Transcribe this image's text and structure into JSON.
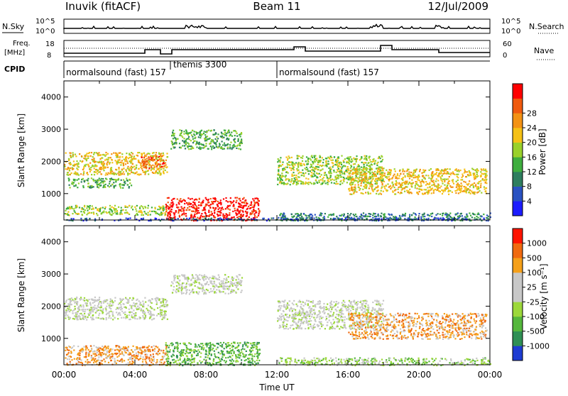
{
  "header": {
    "site": "Inuvik (fitACF)",
    "beam": "Beam 11",
    "date": "12/Jul/2009"
  },
  "panels": {
    "nsky": {
      "label": "N.Sky",
      "right_label": "N.Search",
      "left_ticks": [
        "10^5",
        "10^0"
      ],
      "right_ticks": [
        "10^5",
        "10^0"
      ]
    },
    "freq": {
      "label_line1": "Freq.",
      "label_line2": "[MHz]",
      "right_label": "Nave",
      "left_ticks": [
        "18",
        "8"
      ],
      "right_ticks": [
        "60",
        "0"
      ]
    },
    "cpid": {
      "label": "CPID",
      "segments": [
        {
          "text": "normalsound (fast) 157",
          "start_hour": 0
        },
        {
          "text": "themis 3300",
          "start_hour": 6
        },
        {
          "text": "normalsound (fast) 157",
          "start_hour": 12
        }
      ]
    }
  },
  "chart_data": [
    {
      "type": "heatmap",
      "title": "Power",
      "ylabel": "Slant Range [km]",
      "xlabel": "Time UT",
      "xlim": [
        0,
        24
      ],
      "ylim": [
        180,
        4500
      ],
      "y_ticks": [
        "1000",
        "2000",
        "3000",
        "4000"
      ],
      "x_ticks": [
        "00:00",
        "04:00",
        "08:00",
        "12:00",
        "16:00",
        "20:00",
        "00:00"
      ],
      "colorbar": {
        "label": "Power [dB]",
        "ticks": [
          "4",
          "8",
          "12",
          "16",
          "20",
          "24",
          "28"
        ],
        "colors": [
          "#1c1cff",
          "#2a52c2",
          "#2e7e5f",
          "#3fae3f",
          "#9ad12b",
          "#f5c116",
          "#f39214",
          "#f05a0e",
          "#ff0000"
        ]
      },
      "regions": [
        {
          "t0": 0.0,
          "t1": 5.8,
          "r0": 1600,
          "r1": 2300,
          "class": 5
        },
        {
          "t0": 0.0,
          "t1": 5.8,
          "r0": 350,
          "r1": 650,
          "class": 4
        },
        {
          "t0": 0.2,
          "t1": 3.8,
          "r0": 1200,
          "r1": 1500,
          "class": 3
        },
        {
          "t0": 4.3,
          "t1": 5.7,
          "r0": 1800,
          "r1": 2200,
          "class": 7
        },
        {
          "t0": 5.7,
          "t1": 11.0,
          "r0": 180,
          "r1": 900,
          "class": 8
        },
        {
          "t0": 6.0,
          "t1": 10.0,
          "r0": 2400,
          "r1": 3000,
          "class": 3
        },
        {
          "t0": 12.0,
          "t1": 18.0,
          "r0": 1300,
          "r1": 2200,
          "class": 4
        },
        {
          "t0": 16.0,
          "t1": 23.8,
          "r0": 1000,
          "r1": 1800,
          "class": 5
        },
        {
          "t0": 12.0,
          "t1": 24.0,
          "r0": 180,
          "r1": 420,
          "class": 2
        },
        {
          "t0": 0.0,
          "t1": 24.0,
          "r0": 180,
          "r1": 260,
          "class": 1
        }
      ]
    },
    {
      "type": "heatmap",
      "title": "Velocity",
      "ylabel": "Slant Range [km]",
      "xlabel": "Time UT",
      "xlim": [
        0,
        24
      ],
      "ylim": [
        180,
        4500
      ],
      "y_ticks": [
        "1000",
        "2000",
        "3000",
        "4000"
      ],
      "x_ticks": [
        "00:00",
        "04:00",
        "08:00",
        "12:00",
        "16:00",
        "20:00",
        "00:00"
      ],
      "colorbar": {
        "label": "Velocity [m s⁻¹]",
        "ticks": [
          "1000",
          "500",
          "100",
          "25",
          "-25",
          "-100",
          "-500",
          "-1000"
        ],
        "colors": [
          "#1e3cd2",
          "#2f8f55",
          "#55b73c",
          "#9cd83a",
          "#c8c8c8",
          "#c8c8c8",
          "#f5a01a",
          "#f06a10",
          "#ff1400"
        ]
      },
      "regions": [
        {
          "t0": 0.0,
          "t1": 5.8,
          "r0": 1600,
          "r1": 2300,
          "class": 4
        },
        {
          "t0": 0.0,
          "t1": 5.8,
          "r0": 180,
          "r1": 800,
          "class": 6
        },
        {
          "t0": 5.7,
          "t1": 11.0,
          "r0": 180,
          "r1": 900,
          "class": 2
        },
        {
          "t0": 6.0,
          "t1": 10.0,
          "r0": 2400,
          "r1": 3000,
          "class": 4
        },
        {
          "t0": 12.0,
          "t1": 18.0,
          "r0": 1300,
          "r1": 2200,
          "class": 4
        },
        {
          "t0": 16.0,
          "t1": 23.8,
          "r0": 1000,
          "r1": 1800,
          "class": 6
        },
        {
          "t0": 12.0,
          "t1": 24.0,
          "r0": 180,
          "r1": 420,
          "class": 3
        }
      ]
    }
  ]
}
